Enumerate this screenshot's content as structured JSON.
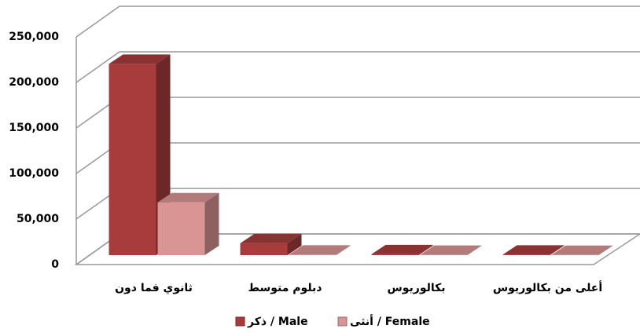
{
  "chart_data": {
    "type": "bar3d",
    "categories": [
      "ثانوي فما دون",
      "دبلوم متوسط",
      "بكالوريوس",
      "أعلى من بكالوريوس"
    ],
    "series": [
      {
        "name": "ذكر / Male",
        "color": "#a83c3c",
        "values": [
          210000,
          13000,
          1000,
          500
        ]
      },
      {
        "name": "أنثى / Female",
        "color": "#d99594",
        "values": [
          58000,
          500,
          300,
          200
        ]
      }
    ],
    "ylim": [
      0,
      250000
    ],
    "yticks": [
      0,
      {
        "value": 50000,
        "label": "50,000"
      },
      {
        "value": 100000,
        "label": "100,000"
      },
      {
        "value": 150000,
        "label": "150,000"
      },
      {
        "value": 200000,
        "label": "200,000"
      },
      {
        "value": 250000,
        "label": "250,000"
      }
    ],
    "grid": true,
    "legend": "bottom"
  }
}
